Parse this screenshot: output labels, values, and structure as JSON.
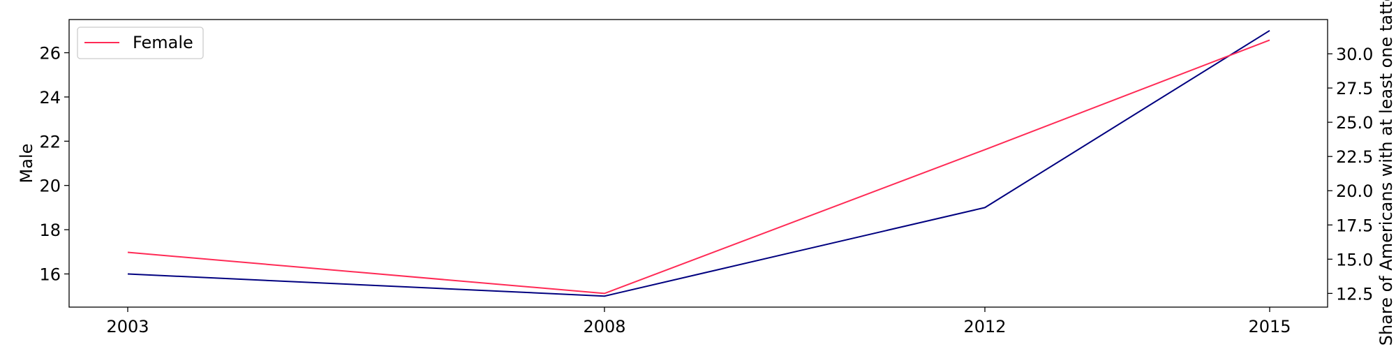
{
  "chart_data": {
    "type": "line",
    "x": [
      "2003",
      "2008",
      "2012",
      "2015"
    ],
    "series": [
      {
        "name": "",
        "axis": "left",
        "color": "#00007f",
        "values": [
          16,
          15,
          19,
          27
        ]
      },
      {
        "name": "Female",
        "axis": "right",
        "color": "#ff2a55",
        "values": [
          15.5,
          12.5,
          23,
          31
        ]
      }
    ],
    "ylabel_left": "Male",
    "ylabel_right": "Share of Americans with at least one tattoo",
    "ylim_left": [
      14.5,
      27.5
    ],
    "ylim_right": [
      11.5,
      32.5
    ],
    "yticks_left": [
      "16",
      "18",
      "20",
      "22",
      "24",
      "26"
    ],
    "yticks_right": [
      "12.5",
      "15.0",
      "17.5",
      "20.0",
      "22.5",
      "25.0",
      "27.5",
      "30.0"
    ],
    "legend": {
      "position": "top-left",
      "entries": [
        "Female"
      ]
    },
    "grid": false
  }
}
